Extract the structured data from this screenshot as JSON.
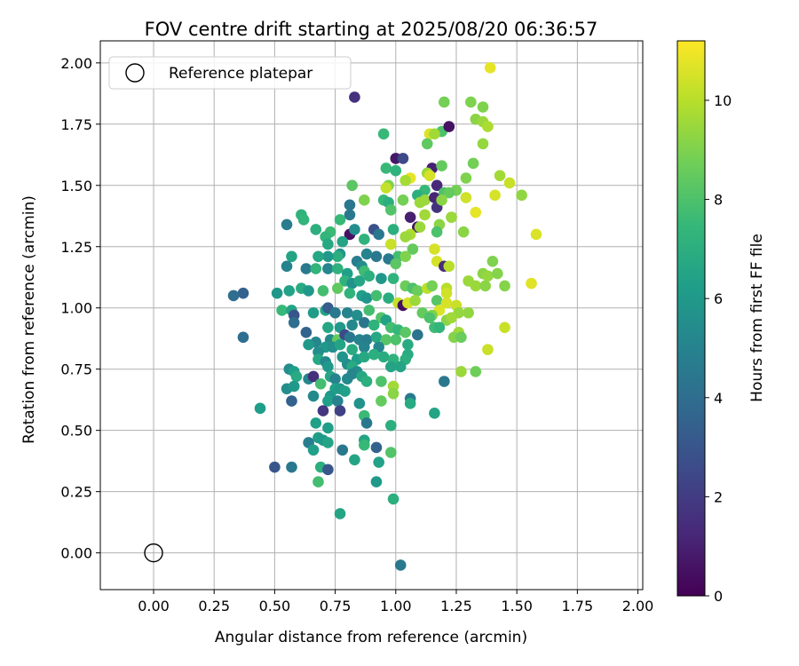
{
  "chart_data": {
    "type": "scatter",
    "title": "FOV centre drift starting at 2025/08/20 06:36:57",
    "xlabel": "Angular distance from reference (arcmin)",
    "ylabel": "Rotation from reference (arcmin)",
    "xlim": [
      -0.22,
      2.02
    ],
    "ylim": [
      -0.15,
      2.09
    ],
    "xticks": [
      "0.00",
      "0.25",
      "0.50",
      "0.75",
      "1.00",
      "1.25",
      "1.50",
      "1.75",
      "2.00"
    ],
    "xtick_values": [
      0,
      0.25,
      0.5,
      0.75,
      1.0,
      1.25,
      1.5,
      1.75,
      2.0
    ],
    "yticks": [
      "0.00",
      "0.25",
      "0.50",
      "0.75",
      "1.00",
      "1.25",
      "1.50",
      "1.75",
      "2.00"
    ],
    "ytick_values": [
      0,
      0.25,
      0.5,
      0.75,
      1.0,
      1.25,
      1.5,
      1.75,
      2.0
    ],
    "grid": true,
    "legend": {
      "placement": "upper-left",
      "entries": [
        {
          "label": "Reference platepar",
          "marker": "open-circle"
        }
      ]
    },
    "reference_point": {
      "x": 0.0,
      "y": 0.0
    },
    "colorbar": {
      "label": "Hours from first FF file",
      "colormap": "viridis",
      "range": [
        0,
        11.2
      ],
      "ticks": [
        "0",
        "2",
        "4",
        "6",
        "8",
        "10"
      ],
      "tick_values": [
        0,
        2,
        4,
        6,
        8,
        10
      ],
      "stops": [
        "#440154",
        "#482878",
        "#3e4989",
        "#31688e",
        "#26828e",
        "#1f9e89",
        "#35b779",
        "#6ece58",
        "#b5de2b",
        "#fde725"
      ]
    },
    "points": [
      [
        1.39,
        1.98,
        10.8
      ],
      [
        0.83,
        1.86,
        1.6
      ],
      [
        1.2,
        1.84,
        8.8
      ],
      [
        1.31,
        1.84,
        9.0
      ],
      [
        1.36,
        1.82,
        9.0
      ],
      [
        0.95,
        1.71,
        7.5
      ],
      [
        1.19,
        1.72,
        8.0
      ],
      [
        1.22,
        1.74,
        0.5
      ],
      [
        1.14,
        1.71,
        10.6
      ],
      [
        1.16,
        1.71,
        9.6
      ],
      [
        1.33,
        1.77,
        9.2
      ],
      [
        1.36,
        1.76,
        9.5
      ],
      [
        1.38,
        1.74,
        9.8
      ],
      [
        1.36,
        1.67,
        9.4
      ],
      [
        1.13,
        1.67,
        8.4
      ],
      [
        1.0,
        1.61,
        0.7
      ],
      [
        1.03,
        1.61,
        2.5
      ],
      [
        0.96,
        1.57,
        7.5
      ],
      [
        1.15,
        1.57,
        1.0
      ],
      [
        1.19,
        1.58,
        8.5
      ],
      [
        1.32,
        1.59,
        8.8
      ],
      [
        1.0,
        1.56,
        7.2
      ],
      [
        1.13,
        1.55,
        9.5
      ],
      [
        1.14,
        1.54,
        10.5
      ],
      [
        1.29,
        1.53,
        9.0
      ],
      [
        1.43,
        1.54,
        9.6
      ],
      [
        1.47,
        1.51,
        10.3
      ],
      [
        1.06,
        1.53,
        10.8
      ],
      [
        1.04,
        1.52,
        9.7
      ],
      [
        0.97,
        1.5,
        9.0
      ],
      [
        0.96,
        1.49,
        10.2
      ],
      [
        0.82,
        1.5,
        8.3
      ],
      [
        1.17,
        1.5,
        1.3
      ],
      [
        1.25,
        1.48,
        8.8
      ],
      [
        1.52,
        1.46,
        9.3
      ],
      [
        1.12,
        1.48,
        7.5
      ],
      [
        1.09,
        1.46,
        7.0
      ],
      [
        1.2,
        1.47,
        8.0
      ],
      [
        1.22,
        1.47,
        8.5
      ],
      [
        0.87,
        1.44,
        9.0
      ],
      [
        0.95,
        1.44,
        7.5
      ],
      [
        0.97,
        1.43,
        7.0
      ],
      [
        1.03,
        1.44,
        8.8
      ],
      [
        1.1,
        1.43,
        9.5
      ],
      [
        1.12,
        1.44,
        9.5
      ],
      [
        1.41,
        1.46,
        10.5
      ],
      [
        1.29,
        1.45,
        10.4
      ],
      [
        1.16,
        1.45,
        1.2
      ],
      [
        1.17,
        1.41,
        1.7
      ],
      [
        1.19,
        1.44,
        9.2
      ],
      [
        0.81,
        1.42,
        4.5
      ],
      [
        0.81,
        1.38,
        4.5
      ],
      [
        1.06,
        1.37,
        1.0
      ],
      [
        0.61,
        1.38,
        7.2
      ],
      [
        0.62,
        1.36,
        7.3
      ],
      [
        0.77,
        1.36,
        7.5
      ],
      [
        0.98,
        1.4,
        8.1
      ],
      [
        1.12,
        1.38,
        9.6
      ],
      [
        1.33,
        1.39,
        10.8
      ],
      [
        1.23,
        1.37,
        9.0
      ],
      [
        1.23,
        1.37,
        9.5
      ],
      [
        1.09,
        1.33,
        0.5
      ],
      [
        1.1,
        1.33,
        9.5
      ],
      [
        1.18,
        1.34,
        9.2
      ],
      [
        1.17,
        1.31,
        8.0
      ],
      [
        1.28,
        1.31,
        9.2
      ],
      [
        0.55,
        1.34,
        4.7
      ],
      [
        0.67,
        1.32,
        7.0
      ],
      [
        0.73,
        1.31,
        7.6
      ],
      [
        0.71,
        1.29,
        7.3
      ],
      [
        0.81,
        1.3,
        0.5
      ],
      [
        0.83,
        1.32,
        5.5
      ],
      [
        0.91,
        1.32,
        2.8
      ],
      [
        0.93,
        1.3,
        4.5
      ],
      [
        0.99,
        1.32,
        7.0
      ],
      [
        1.06,
        1.3,
        9.8
      ],
      [
        1.58,
        1.3,
        10.6
      ],
      [
        1.04,
        1.29,
        9.5
      ],
      [
        0.87,
        1.28,
        7.2
      ],
      [
        0.78,
        1.27,
        6.5
      ],
      [
        0.72,
        1.26,
        6.7
      ],
      [
        0.98,
        1.26,
        10.3
      ],
      [
        1.16,
        1.24,
        10.5
      ],
      [
        1.07,
        1.24,
        8.5
      ],
      [
        0.88,
        1.22,
        5.0
      ],
      [
        0.92,
        1.21,
        4.5
      ],
      [
        0.77,
        1.22,
        5.8
      ],
      [
        0.76,
        1.21,
        7.0
      ],
      [
        0.72,
        1.21,
        6.0
      ],
      [
        0.57,
        1.21,
        6.5
      ],
      [
        0.68,
        1.21,
        6.6
      ],
      [
        1.01,
        1.21,
        7.8
      ],
      [
        1.04,
        1.21,
        9.0
      ],
      [
        1.17,
        1.19,
        10.5
      ],
      [
        1.4,
        1.19,
        9.0
      ],
      [
        0.84,
        1.19,
        4.8
      ],
      [
        0.86,
        1.17,
        5.4
      ],
      [
        0.97,
        1.2,
        4.6
      ],
      [
        0.55,
        1.17,
        5.0
      ],
      [
        0.63,
        1.16,
        4.6
      ],
      [
        0.67,
        1.16,
        7.3
      ],
      [
        0.72,
        1.16,
        5.2
      ],
      [
        0.76,
        1.16,
        7.1
      ],
      [
        0.8,
        1.14,
        6.3
      ],
      [
        0.87,
        1.15,
        7.7
      ],
      [
        1.0,
        1.18,
        8.3
      ],
      [
        1.2,
        1.17,
        1.4
      ],
      [
        1.22,
        1.17,
        10.0
      ],
      [
        1.36,
        1.14,
        9.2
      ],
      [
        1.38,
        1.13,
        9.4
      ],
      [
        1.42,
        1.14,
        9.1
      ],
      [
        0.79,
        1.11,
        7.2
      ],
      [
        0.82,
        1.1,
        5.7
      ],
      [
        0.85,
        1.11,
        6.6
      ],
      [
        0.89,
        1.13,
        7.0
      ],
      [
        0.94,
        1.12,
        5.9
      ],
      [
        0.99,
        1.12,
        7.2
      ],
      [
        1.04,
        1.09,
        8.6
      ],
      [
        1.07,
        1.08,
        8.0
      ],
      [
        1.09,
        1.07,
        8.6
      ],
      [
        1.13,
        1.08,
        10.1
      ],
      [
        1.15,
        1.09,
        8.8
      ],
      [
        1.21,
        1.08,
        10.0
      ],
      [
        1.21,
        1.06,
        10.4
      ],
      [
        1.3,
        1.11,
        9.5
      ],
      [
        1.33,
        1.09,
        9.5
      ],
      [
        1.37,
        1.09,
        9.2
      ],
      [
        1.45,
        1.09,
        9.1
      ],
      [
        1.56,
        1.1,
        10.7
      ],
      [
        0.37,
        1.06,
        3.5
      ],
      [
        0.33,
        1.05,
        4.0
      ],
      [
        0.51,
        1.06,
        5.9
      ],
      [
        0.56,
        1.07,
        6.4
      ],
      [
        0.61,
        1.08,
        6.8
      ],
      [
        0.64,
        1.07,
        6.0
      ],
      [
        0.7,
        1.07,
        7.8
      ],
      [
        0.76,
        1.08,
        8.4
      ],
      [
        0.81,
        1.06,
        7.2
      ],
      [
        0.86,
        1.05,
        6.3
      ],
      [
        0.88,
        1.04,
        5.8
      ],
      [
        0.92,
        1.05,
        7.8
      ],
      [
        0.97,
        1.04,
        6.9
      ],
      [
        1.01,
        1.02,
        10.2
      ],
      [
        1.03,
        1.01,
        0.4
      ],
      [
        1.05,
        1.02,
        10.5
      ],
      [
        1.08,
        1.03,
        9.5
      ],
      [
        1.17,
        1.03,
        8.2
      ],
      [
        1.21,
        1.02,
        10.5
      ],
      [
        1.25,
        1.01,
        10.3
      ],
      [
        1.18,
        0.99,
        10.6
      ],
      [
        1.11,
        0.98,
        8.5
      ],
      [
        1.15,
        0.97,
        9.0
      ],
      [
        1.14,
        0.96,
        8.0
      ],
      [
        0.53,
        0.99,
        7.5
      ],
      [
        0.57,
        0.99,
        6.5
      ],
      [
        0.58,
        0.97,
        3.0
      ],
      [
        0.58,
        0.94,
        4.0
      ],
      [
        0.66,
        0.98,
        6.1
      ],
      [
        0.71,
        0.99,
        6.5
      ],
      [
        0.72,
        1.0,
        3.3
      ],
      [
        0.75,
        0.98,
        4.5
      ],
      [
        0.8,
        0.98,
        5.0
      ],
      [
        0.84,
        0.97,
        5.5
      ],
      [
        0.89,
        0.99,
        7.8
      ],
      [
        0.94,
        0.96,
        8.1
      ],
      [
        0.96,
        0.95,
        6.4
      ],
      [
        1.26,
        0.98,
        9.4
      ],
      [
        1.3,
        0.98,
        9.3
      ],
      [
        1.21,
        0.95,
        9.2
      ],
      [
        1.23,
        0.96,
        9.6
      ],
      [
        0.63,
        0.9,
        3.6
      ],
      [
        0.72,
        0.92,
        6.6
      ],
      [
        0.77,
        0.92,
        6.0
      ],
      [
        0.82,
        0.93,
        5.3
      ],
      [
        0.87,
        0.94,
        4.4
      ],
      [
        0.91,
        0.93,
        7.2
      ],
      [
        0.98,
        0.92,
        7.8
      ],
      [
        1.01,
        0.91,
        7.4
      ],
      [
        1.04,
        0.9,
        8.3
      ],
      [
        1.09,
        0.89,
        4.3
      ],
      [
        1.16,
        0.92,
        7.7
      ],
      [
        1.18,
        0.92,
        7.3
      ],
      [
        1.26,
        0.9,
        9.6
      ],
      [
        1.24,
        0.88,
        9.1
      ],
      [
        1.27,
        0.88,
        8.6
      ],
      [
        1.45,
        0.92,
        10.3
      ],
      [
        0.37,
        0.88,
        4.0
      ],
      [
        0.67,
        0.86,
        5.2
      ],
      [
        0.73,
        0.87,
        5.3
      ],
      [
        0.76,
        0.87,
        8.5
      ],
      [
        0.79,
        0.89,
        2.5
      ],
      [
        0.81,
        0.88,
        4.5
      ],
      [
        0.85,
        0.87,
        5.0
      ],
      [
        0.88,
        0.87,
        4.8
      ],
      [
        0.92,
        0.88,
        6.7
      ],
      [
        0.96,
        0.87,
        8.2
      ],
      [
        1.0,
        0.87,
        8.0
      ],
      [
        0.64,
        0.85,
        6.0
      ],
      [
        0.71,
        0.84,
        6.0
      ],
      [
        0.74,
        0.84,
        5.6
      ],
      [
        0.77,
        0.85,
        6.5
      ],
      [
        0.82,
        0.83,
        6.8
      ],
      [
        0.87,
        0.84,
        5.0
      ],
      [
        0.93,
        0.84,
        5.2
      ],
      [
        1.05,
        0.85,
        6.8
      ],
      [
        1.05,
        0.81,
        6.8
      ],
      [
        1.38,
        0.83,
        10.3
      ],
      [
        0.68,
        0.82,
        5.5
      ],
      [
        0.68,
        0.79,
        6.7
      ],
      [
        0.71,
        0.78,
        5.3
      ],
      [
        0.78,
        0.8,
        5.8
      ],
      [
        0.84,
        0.79,
        6.2
      ],
      [
        0.87,
        0.8,
        6.7
      ],
      [
        0.91,
        0.81,
        7.0
      ],
      [
        0.95,
        0.8,
        6.9
      ],
      [
        0.99,
        0.79,
        7.2
      ],
      [
        1.04,
        0.79,
        7.0
      ],
      [
        0.72,
        0.76,
        6.0
      ],
      [
        0.8,
        0.77,
        5.5
      ],
      [
        0.82,
        0.76,
        6.8
      ],
      [
        0.84,
        0.74,
        5.5
      ],
      [
        0.98,
        0.76,
        6.5
      ],
      [
        1.02,
        0.76,
        6.5
      ],
      [
        1.27,
        0.74,
        9.5
      ],
      [
        1.33,
        0.74,
        8.7
      ],
      [
        0.56,
        0.75,
        5.5
      ],
      [
        0.58,
        0.74,
        6.2
      ],
      [
        0.59,
        0.72,
        6.8
      ],
      [
        0.64,
        0.71,
        5.3
      ],
      [
        0.66,
        0.72,
        1.5
      ],
      [
        0.73,
        0.72,
        6.6
      ],
      [
        0.75,
        0.71,
        5.0
      ],
      [
        0.8,
        0.71,
        5.3
      ],
      [
        0.82,
        0.73,
        5.2
      ],
      [
        0.86,
        0.72,
        6.7
      ],
      [
        0.88,
        0.7,
        7.0
      ],
      [
        0.94,
        0.7,
        8.0
      ],
      [
        1.2,
        0.7,
        4.5
      ],
      [
        0.55,
        0.67,
        5.5
      ],
      [
        0.58,
        0.68,
        6.0
      ],
      [
        0.69,
        0.69,
        7.8
      ],
      [
        0.75,
        0.67,
        6.3
      ],
      [
        0.77,
        0.67,
        6.0
      ],
      [
        0.79,
        0.66,
        6.3
      ],
      [
        0.73,
        0.64,
        6.0
      ],
      [
        0.66,
        0.64,
        5.3
      ],
      [
        0.72,
        0.62,
        6.3
      ],
      [
        0.76,
        0.62,
        5.0
      ],
      [
        0.99,
        0.68,
        9.6
      ],
      [
        0.99,
        0.65,
        9.2
      ],
      [
        0.57,
        0.62,
        3.5
      ],
      [
        0.44,
        0.59,
        6.2
      ],
      [
        0.7,
        0.58,
        1.8
      ],
      [
        0.77,
        0.58,
        2.2
      ],
      [
        0.85,
        0.61,
        5.7
      ],
      [
        0.94,
        0.62,
        8.5
      ],
      [
        1.06,
        0.63,
        4.6
      ],
      [
        1.06,
        0.61,
        6.8
      ],
      [
        1.16,
        0.57,
        6.5
      ],
      [
        0.67,
        0.53,
        6.3
      ],
      [
        0.72,
        0.51,
        6.2
      ],
      [
        0.87,
        0.56,
        7.6
      ],
      [
        0.88,
        0.53,
        4.5
      ],
      [
        0.98,
        0.52,
        7.0
      ],
      [
        0.64,
        0.45,
        4.8
      ],
      [
        0.68,
        0.47,
        6.2
      ],
      [
        0.7,
        0.46,
        6.0
      ],
      [
        0.72,
        0.45,
        6.5
      ],
      [
        0.87,
        0.46,
        6.5
      ],
      [
        0.87,
        0.44,
        7.5
      ],
      [
        0.92,
        0.43,
        3.5
      ],
      [
        0.98,
        0.41,
        8.1
      ],
      [
        0.66,
        0.42,
        6.3
      ],
      [
        0.78,
        0.42,
        4.5
      ],
      [
        0.83,
        0.38,
        6.5
      ],
      [
        0.93,
        0.37,
        6.4
      ],
      [
        0.5,
        0.35,
        3.0
      ],
      [
        0.57,
        0.35,
        4.5
      ],
      [
        0.69,
        0.35,
        7.0
      ],
      [
        0.72,
        0.34,
        3.0
      ],
      [
        0.92,
        0.29,
        6.0
      ],
      [
        0.68,
        0.29,
        7.8
      ],
      [
        0.99,
        0.22,
        7.0
      ],
      [
        0.77,
        0.16,
        6.5
      ],
      [
        1.02,
        -0.05,
        4.5
      ]
    ]
  }
}
